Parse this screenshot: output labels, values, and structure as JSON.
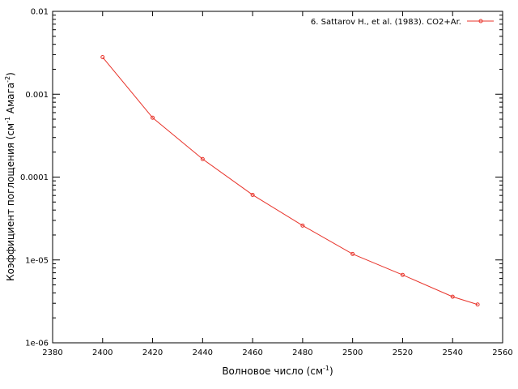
{
  "chart_data": {
    "type": "line",
    "xlabel": {
      "text": "Волновое число (см",
      "sup": "-1",
      "tail": ")"
    },
    "ylabel": {
      "text": "Коэффициент поглощения (см",
      "sup1": "-1",
      "mid": " Амага",
      "sup2": "-2",
      "tail": ")"
    },
    "xlim": [
      2380,
      2560
    ],
    "ylim": [
      1e-06,
      0.01
    ],
    "yscale": "log",
    "grid": false,
    "legend_position": "top-right",
    "x_ticks": [
      {
        "value": 2380,
        "label": "2380"
      },
      {
        "value": 2400,
        "label": "2400"
      },
      {
        "value": 2420,
        "label": "2420"
      },
      {
        "value": 2440,
        "label": "2440"
      },
      {
        "value": 2460,
        "label": "2460"
      },
      {
        "value": 2480,
        "label": "2480"
      },
      {
        "value": 2500,
        "label": "2500"
      },
      {
        "value": 2520,
        "label": "2520"
      },
      {
        "value": 2540,
        "label": "2540"
      },
      {
        "value": 2560,
        "label": "2560"
      }
    ],
    "y_ticks": [
      {
        "value": 1e-06,
        "label": "1e-06"
      },
      {
        "value": 1e-05,
        "label": "1e-05"
      },
      {
        "value": 0.0001,
        "label": "0.0001"
      },
      {
        "value": 0.001,
        "label": "0.001"
      },
      {
        "value": 0.01,
        "label": "0.01"
      }
    ],
    "series": [
      {
        "name": "6. Sattarov H., et al. (1983). CO2+Ar.",
        "color": "#e8332a",
        "points": [
          {
            "x": 2400,
            "y": 0.0028
          },
          {
            "x": 2420,
            "y": 0.00052
          },
          {
            "x": 2440,
            "y": 0.000165
          },
          {
            "x": 2460,
            "y": 6.1e-05
          },
          {
            "x": 2480,
            "y": 2.6e-05
          },
          {
            "x": 2500,
            "y": 1.18e-05
          },
          {
            "x": 2520,
            "y": 6.6e-06
          },
          {
            "x": 2540,
            "y": 3.6e-06
          },
          {
            "x": 2550,
            "y": 2.9e-06
          }
        ]
      }
    ]
  }
}
